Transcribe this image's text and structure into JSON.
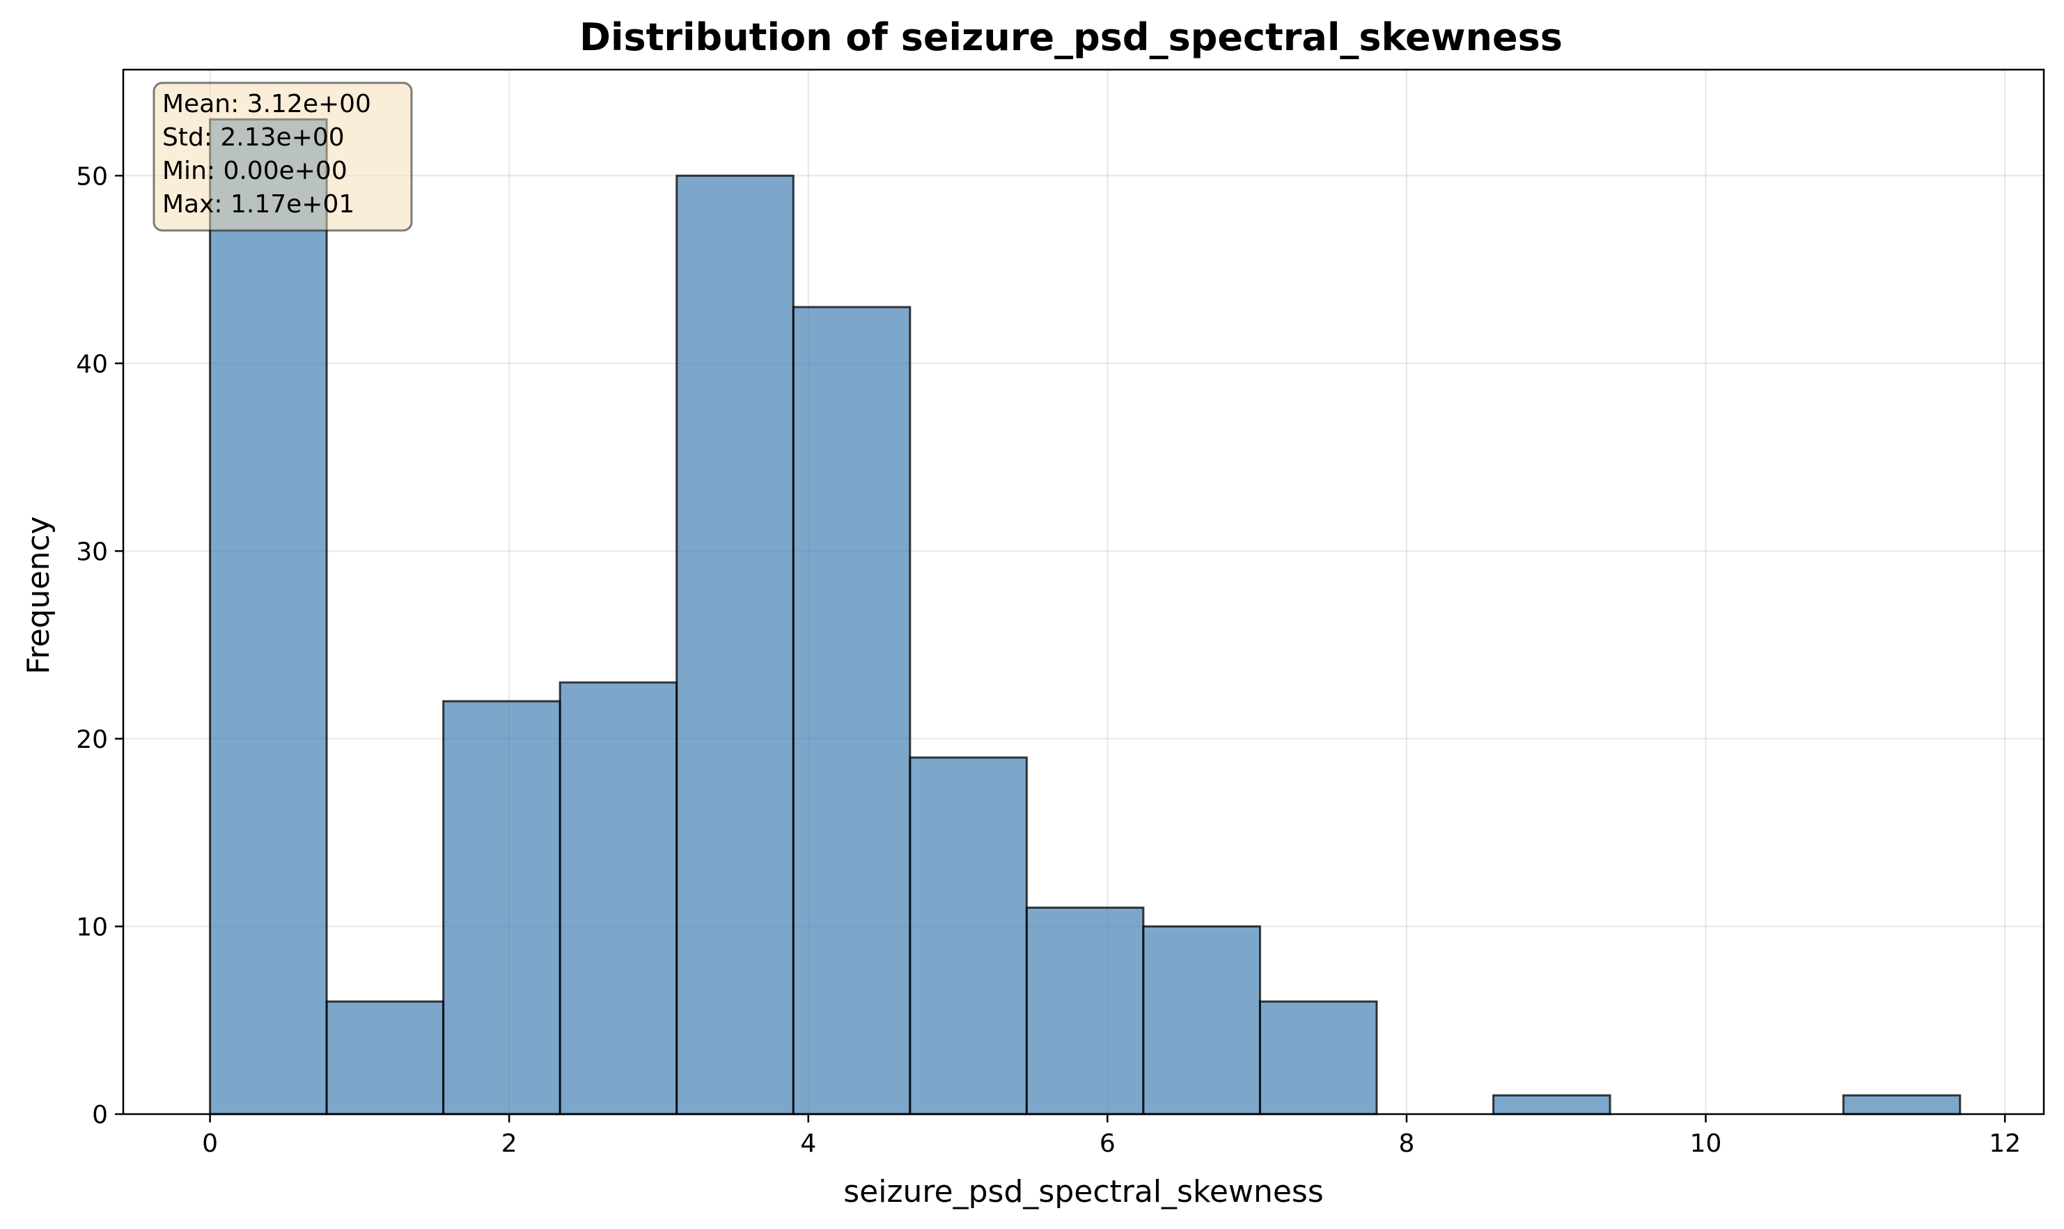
{
  "chart_data": {
    "type": "bar",
    "title": "Distribution of seizure_psd_spectral_skewness",
    "xlabel": "seizure_psd_spectral_skewness",
    "ylabel": "Frequency",
    "xlim": [
      -0.58,
      12.26
    ],
    "ylim": [
      0,
      55.65
    ],
    "xticks": [
      0,
      2,
      4,
      6,
      8,
      10,
      12
    ],
    "yticks": [
      0,
      10,
      20,
      30,
      40,
      50
    ],
    "grid": true,
    "bar_color": "#4682b4",
    "edge_color": "#000000",
    "bins": [
      {
        "x0": 0.0,
        "x1": 0.78,
        "count": 53
      },
      {
        "x0": 0.78,
        "x1": 1.56,
        "count": 6
      },
      {
        "x0": 1.56,
        "x1": 2.34,
        "count": 22
      },
      {
        "x0": 2.34,
        "x1": 3.12,
        "count": 23
      },
      {
        "x0": 3.12,
        "x1": 3.9,
        "count": 50
      },
      {
        "x0": 3.9,
        "x1": 4.68,
        "count": 43
      },
      {
        "x0": 4.68,
        "x1": 5.46,
        "count": 19
      },
      {
        "x0": 5.46,
        "x1": 6.24,
        "count": 11
      },
      {
        "x0": 6.24,
        "x1": 7.02,
        "count": 10
      },
      {
        "x0": 7.02,
        "x1": 7.8,
        "count": 6
      },
      {
        "x0": 7.8,
        "x1": 8.58,
        "count": 0
      },
      {
        "x0": 8.58,
        "x1": 9.36,
        "count": 1
      },
      {
        "x0": 9.36,
        "x1": 10.14,
        "count": 0
      },
      {
        "x0": 10.14,
        "x1": 10.92,
        "count": 0
      },
      {
        "x0": 10.92,
        "x1": 11.7,
        "count": 1
      }
    ],
    "stats": [
      "Mean: 3.12e+00",
      "Std: 2.13e+00",
      "Min: 0.00e+00",
      "Max: 1.17e+01"
    ]
  }
}
